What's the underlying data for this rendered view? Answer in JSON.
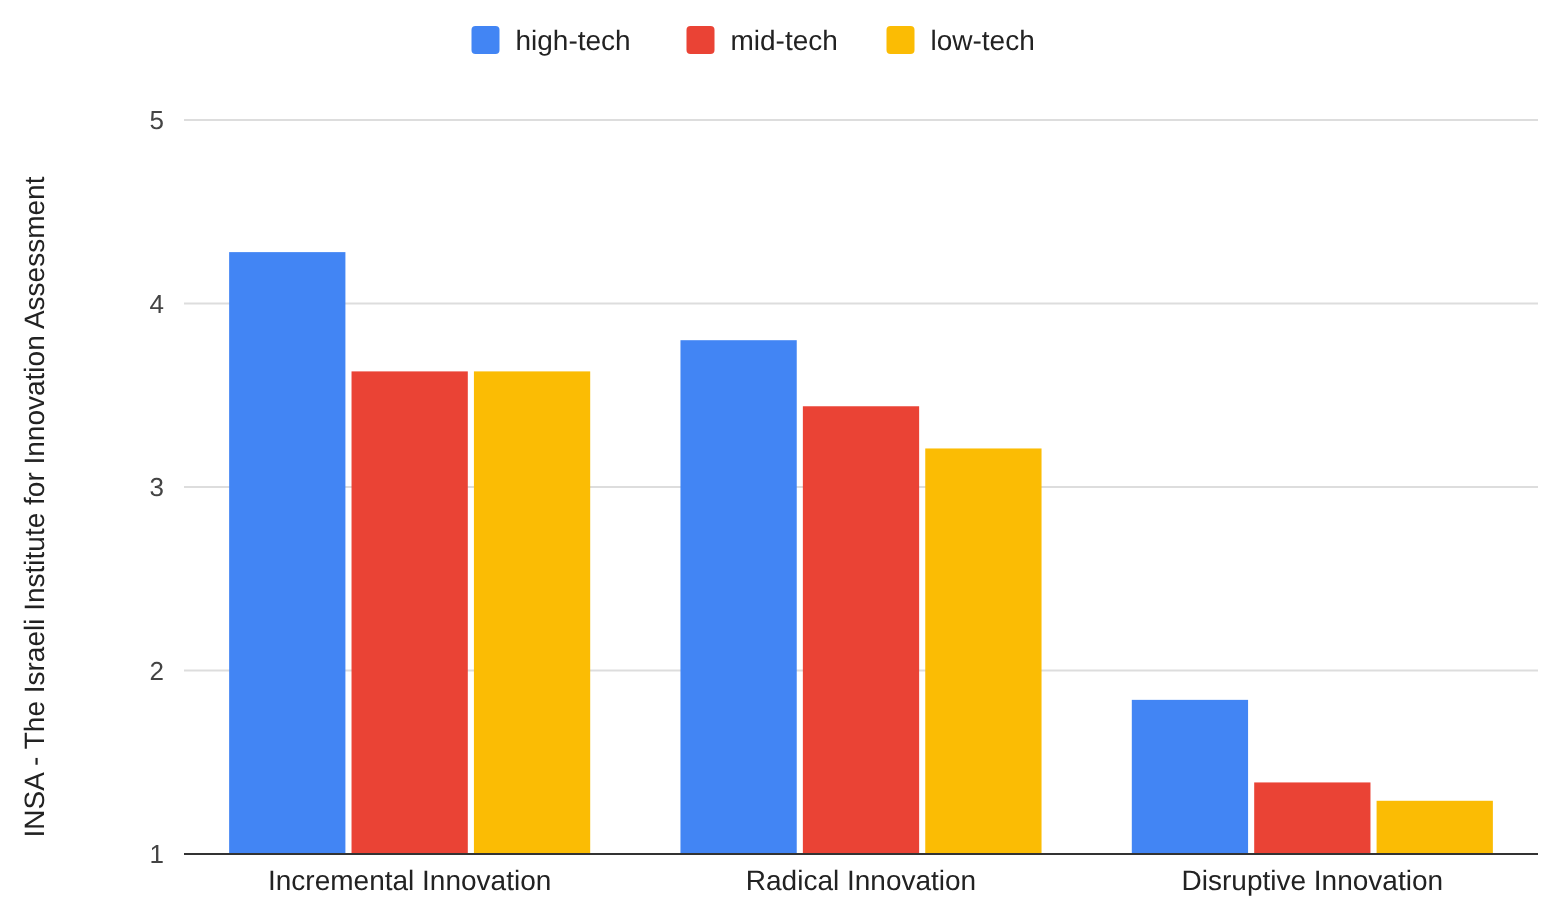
{
  "chart_data": {
    "type": "bar",
    "ylabel": "INSA - The Israeli Institute for Innovation Assessment",
    "categories": [
      "Incremental Innovation",
      "Radical Innovation",
      "Disruptive Innovation"
    ],
    "series": [
      {
        "name": "high-tech",
        "color": "#4285f4",
        "values": [
          4.28,
          3.8,
          1.84
        ]
      },
      {
        "name": "mid-tech",
        "color": "#ea4335",
        "values": [
          3.63,
          3.44,
          1.39
        ]
      },
      {
        "name": "low-tech",
        "color": "#fbbc04",
        "values": [
          3.63,
          3.21,
          1.29
        ]
      }
    ],
    "ylim": [
      1,
      5
    ],
    "yticks": [
      1,
      2,
      3,
      4,
      5
    ],
    "grid": "y",
    "legend": "top"
  }
}
